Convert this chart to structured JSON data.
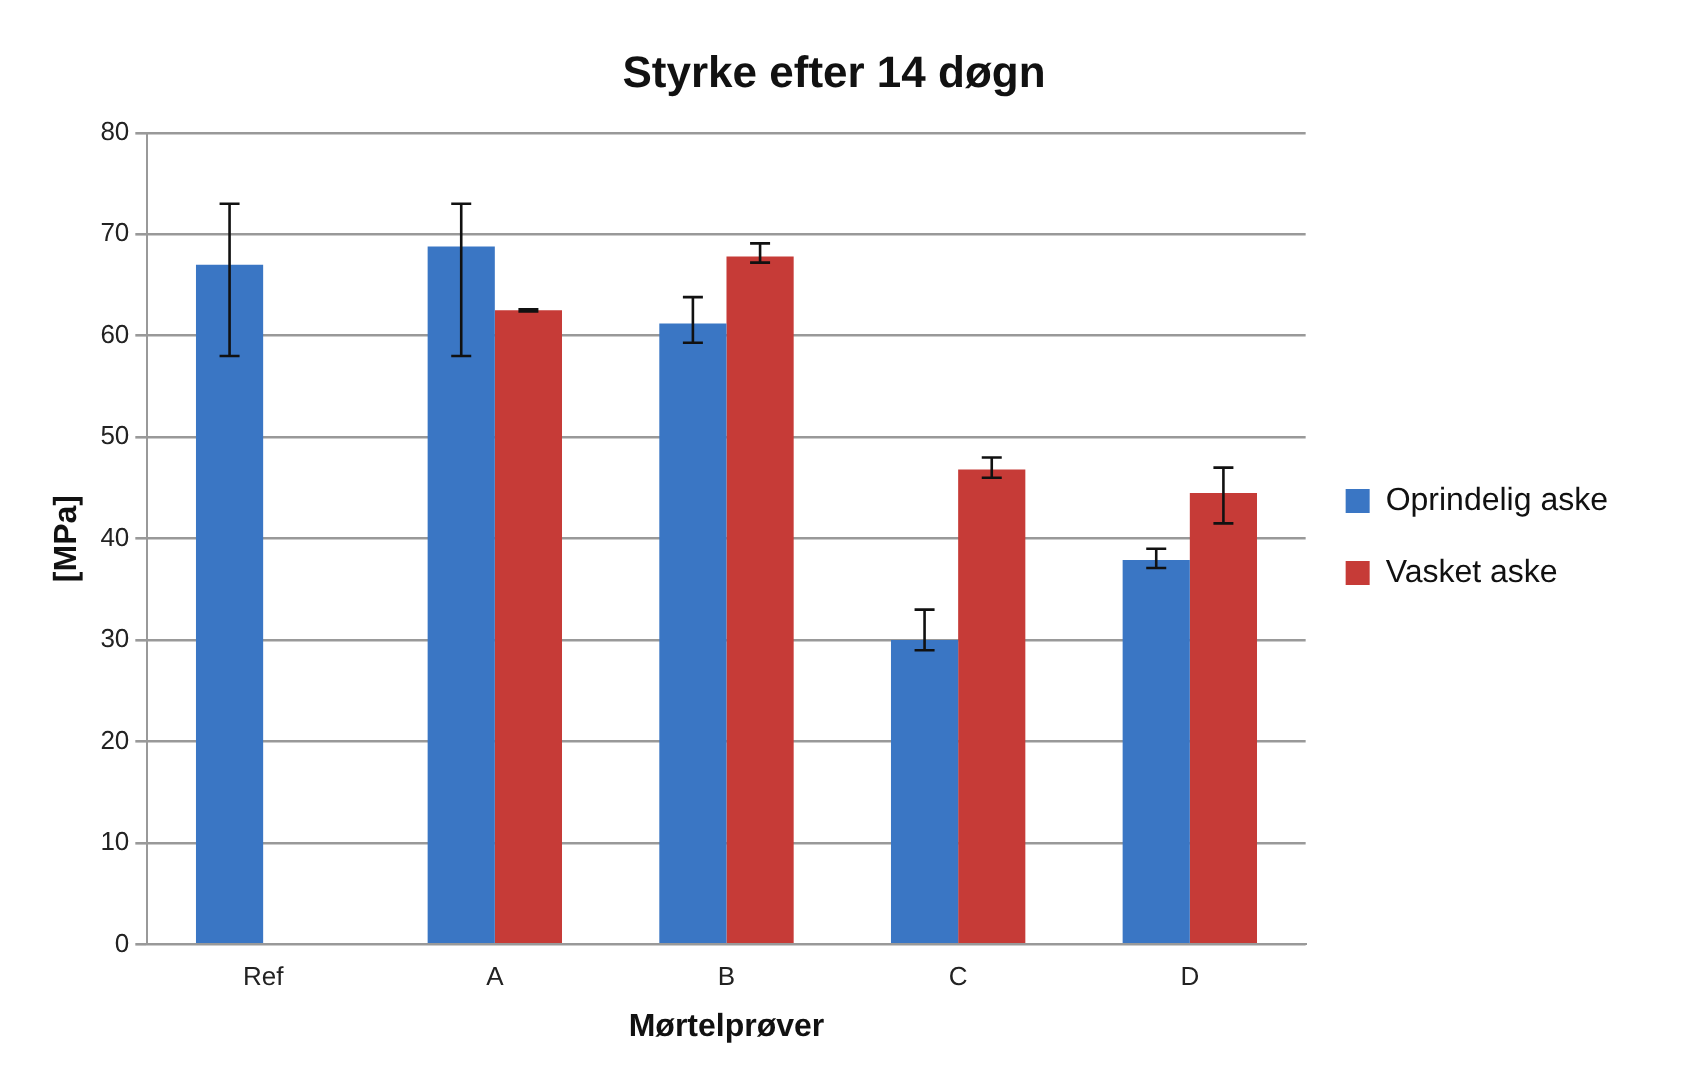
{
  "chart_data": {
    "type": "bar",
    "title": "Styrke efter 14 døgn",
    "xlabel": "Mørtelprøver",
    "ylabel": "[MPa]",
    "categories": [
      "Ref",
      "A",
      "B",
      "C",
      "D"
    ],
    "series": [
      {
        "name": "Oprindelig aske",
        "color": "#3a76c4",
        "values": [
          67,
          68.8,
          61.2,
          30,
          37.9
        ],
        "errors": [
          [
            58,
            73
          ],
          [
            58,
            73
          ],
          [
            59.3,
            63.8
          ],
          [
            29,
            33
          ],
          [
            37.1,
            39
          ]
        ]
      },
      {
        "name": "Vasket aske",
        "color": "#c63b37",
        "values": [
          null,
          62.5,
          67.8,
          46.8,
          44.5
        ],
        "errors": [
          null,
          [
            62.4,
            62.6
          ],
          [
            67.2,
            69.1
          ],
          [
            46,
            48
          ],
          [
            41.5,
            47
          ]
        ]
      }
    ],
    "ylim": [
      0,
      80
    ],
    "yticks": [
      0,
      10,
      20,
      30,
      40,
      50,
      60,
      70,
      80
    ],
    "grid": "y",
    "legend": "right"
  }
}
